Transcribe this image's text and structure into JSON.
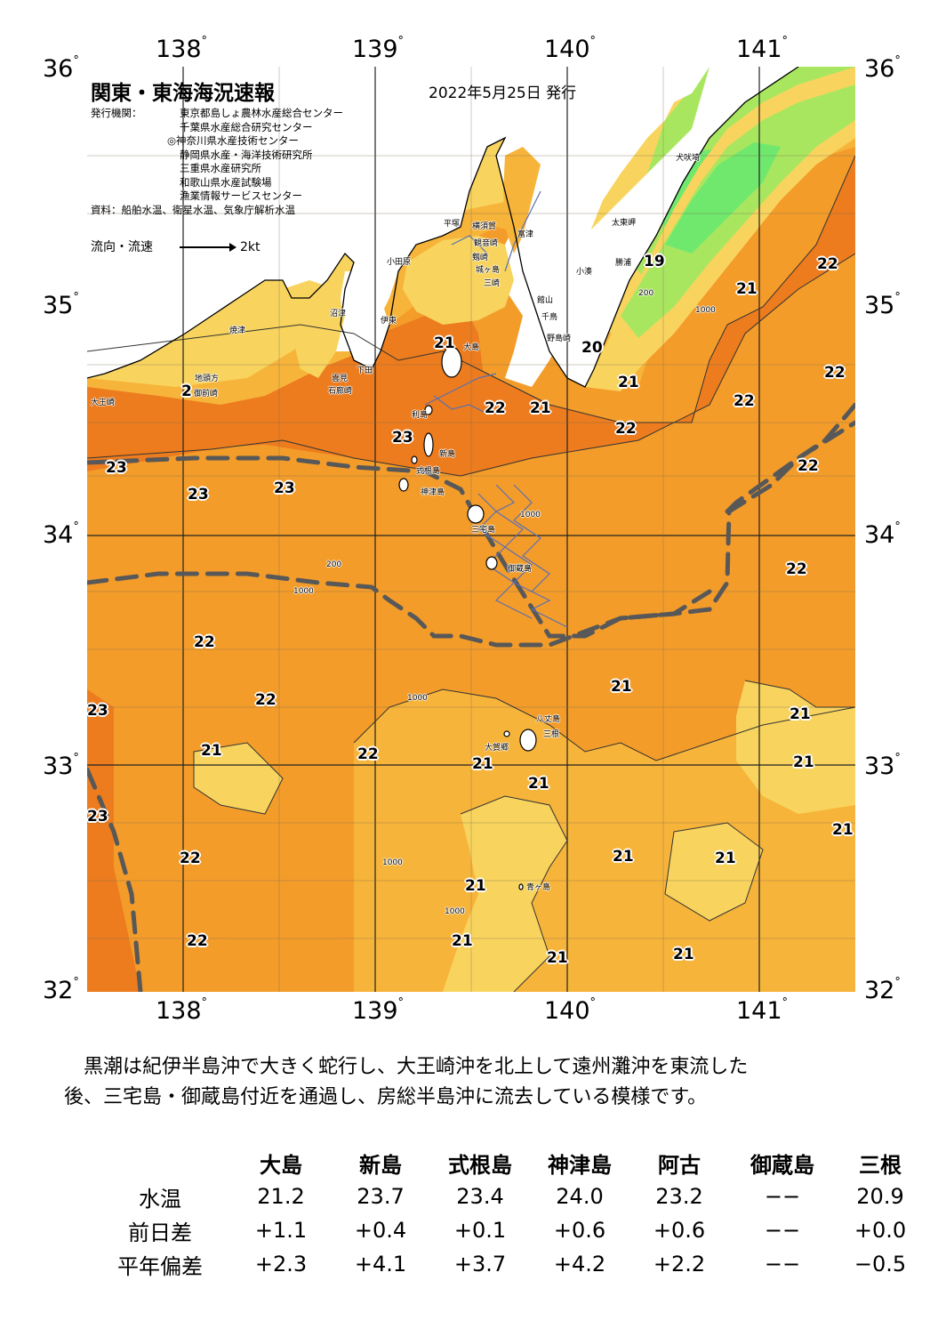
{
  "map": {
    "title": "関東・東海海況速報",
    "date": "2022年5月25日 発行",
    "issuer_label": "発行機関：",
    "issuers": [
      "東京都島しょ農林水産総合センター",
      "千葉県水産総合研究センター",
      "◎神奈川県水産技術センター",
      "静岡県水産・海洋技術研究所",
      "三重県水産研究所",
      "和歌山県水産試験場",
      "漁業情報サービスセンター"
    ],
    "source": "資料：船舶水温、衛星水温、気象庁解析水温",
    "legend_label": "流向・流速",
    "legend_speed": "2kt",
    "lon_labels": [
      "138",
      "139",
      "140",
      "141"
    ],
    "lat_labels": [
      "36",
      "35",
      "34",
      "33",
      "32"
    ],
    "temperature_labels": [
      "19",
      "20",
      "21",
      "21",
      "21",
      "21",
      "21",
      "21",
      "21",
      "21",
      "21",
      "21",
      "21",
      "21",
      "21",
      "21",
      "21",
      "21",
      "21",
      "21",
      "22",
      "22",
      "22",
      "22",
      "22",
      "22",
      "22",
      "22",
      "22",
      "22",
      "22",
      "22",
      "23",
      "23",
      "23",
      "23",
      "23",
      "23",
      "2"
    ],
    "place_names": [
      "犬吠埼",
      "太東岬",
      "勝浦",
      "小湊",
      "館山",
      "千鳥",
      "野島崎",
      "富津",
      "横須賀",
      "観音崎",
      "剱崎",
      "城ヶ島",
      "三崎",
      "平塚",
      "小田原",
      "大島",
      "利島",
      "新島",
      "式根島",
      "神津島",
      "三宅島",
      "御蔵島",
      "八丈島",
      "三根",
      "大賀郷",
      "青ヶ島",
      "伊東",
      "下田",
      "石廊崎",
      "雲見",
      "沼津",
      "焼津",
      "御前崎",
      "地頭方",
      "大王崎"
    ],
    "depth_labels": [
      "200",
      "1000",
      "200",
      "1000",
      "1000",
      "1000",
      "1000",
      "1000"
    ]
  },
  "colors": {
    "warm_dark": "#ec7c1e",
    "warm_mid": "#f39c2a",
    "warm_light": "#f7b43a",
    "yellow": "#f8d45e",
    "pale_yellow": "#efe48a",
    "yellow_green": "#d7e96a",
    "green": "#a9e660",
    "bright_green": "#6fe86d",
    "kuroshio_axis": "#585858",
    "current_vector": "#5b6fb3"
  },
  "summary": {
    "line1": "黒潮は紀伊半島沖で大きく蛇行し、大王崎沖を北上して遠州灘沖を東流した",
    "line2": "後、三宅島・御蔵島付近を通過し、房総半島沖に流去している模様です。"
  },
  "stats": {
    "stations": [
      "大島",
      "新島",
      "式根島",
      "神津島",
      "阿古",
      "御蔵島",
      "三根"
    ],
    "rows": [
      {
        "label": "水温",
        "values": [
          "21.2",
          "23.7",
          "23.4",
          "24.0",
          "23.2",
          "−−",
          "20.9"
        ]
      },
      {
        "label": "前日差",
        "values": [
          "+1.1",
          "+0.4",
          "+0.1",
          "+0.6",
          "+0.6",
          "−−",
          "+0.0"
        ]
      },
      {
        "label": "平年偏差",
        "values": [
          "+2.3",
          "+4.1",
          "+3.7",
          "+4.2",
          "+2.2",
          "−−",
          "−0.5"
        ]
      }
    ]
  }
}
